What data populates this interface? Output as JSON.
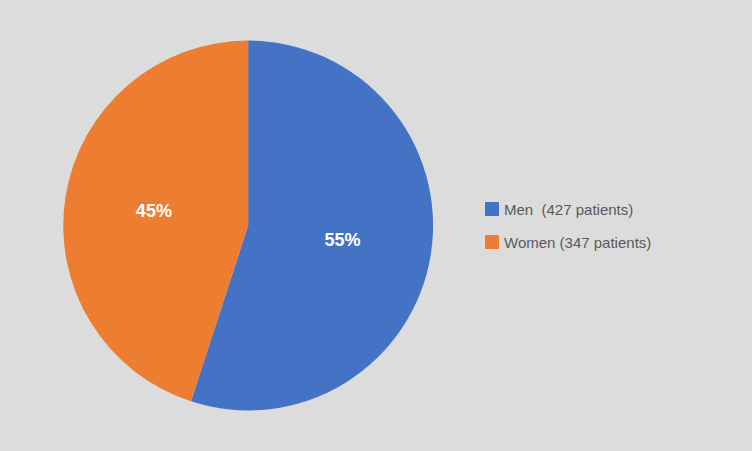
{
  "chart_data": {
    "type": "pie",
    "categories": [
      "Men  (427 patients)",
      "Women (347 patients)"
    ],
    "values": [
      55,
      45
    ],
    "value_labels": [
      "55%",
      "45%"
    ],
    "colors": [
      "#4472C4",
      "#ED7D31"
    ],
    "data_labels": true,
    "legend": "right"
  }
}
